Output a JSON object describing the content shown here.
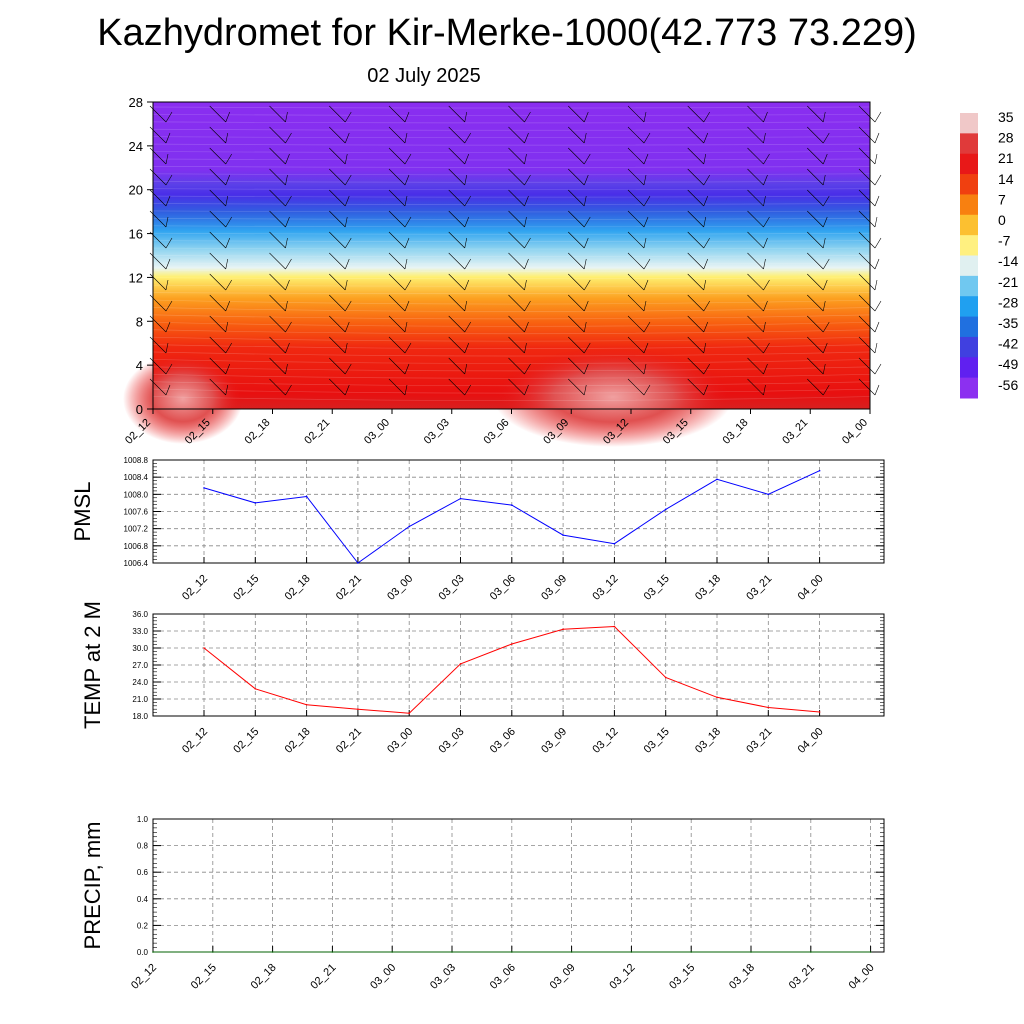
{
  "header": {
    "title": "Kazhydromet for Kir-Merke-1000(42.773 73.229)",
    "date": "02 July 2025"
  },
  "chart_data": [
    {
      "type": "heatmap",
      "name": "cross-section",
      "x_labels": [
        "02_12",
        "02_15",
        "02_18",
        "02_21",
        "03_00",
        "03_03",
        "03_06",
        "03_09",
        "03_12",
        "03_15",
        "03_18",
        "03_21",
        "04_00"
      ],
      "y_ticks": [
        0,
        4,
        8,
        12,
        16,
        20,
        24,
        28
      ],
      "ylim": [
        0,
        28
      ],
      "colorbar_labels": [
        "35",
        "28",
        "21",
        "14",
        "7",
        "0",
        "-7",
        "-14",
        "-21",
        "-28",
        "-35",
        "-42",
        "-49",
        "-56"
      ],
      "colorbar_colors": [
        "#f0c8c8",
        "#e03a3a",
        "#e81818",
        "#f04010",
        "#f88010",
        "#fcc030",
        "#fff080",
        "#e0f0f0",
        "#70c8f0",
        "#20a0f0",
        "#2070e0",
        "#4040e0",
        "#6020f0",
        "#8c30f0"
      ],
      "note_contours": "filled temperature contours with wind barbs"
    },
    {
      "type": "line",
      "name": "pmsl",
      "ylabel": "PMSL",
      "x_labels": [
        "02_12",
        "02_15",
        "02_18",
        "02_21",
        "03_00",
        "03_03",
        "03_06",
        "03_09",
        "03_12",
        "03_15",
        "03_18",
        "03_21",
        "04_00"
      ],
      "y_ticks": [
        "1006.4",
        "1006.8",
        "1007.2",
        "1007.6",
        "1008.0",
        "1008.4",
        "1008.8"
      ],
      "ylim": [
        1006.4,
        1008.8
      ],
      "values": [
        1008.15,
        1007.8,
        1007.95,
        1006.4,
        1007.25,
        1007.9,
        1007.75,
        1007.05,
        1006.85,
        1007.65,
        1008.35,
        1008.0,
        1008.55
      ],
      "color": "#0000ff"
    },
    {
      "type": "line",
      "name": "temp2m",
      "ylabel": "TEMP at 2 M",
      "x_labels": [
        "02_12",
        "02_15",
        "02_18",
        "02_21",
        "03_00",
        "03_03",
        "03_06",
        "03_09",
        "03_12",
        "03_15",
        "03_18",
        "03_21",
        "04_00"
      ],
      "y_ticks": [
        "18.0",
        "21.0",
        "24.0",
        "27.0",
        "30.0",
        "33.0",
        "36.0"
      ],
      "ylim": [
        18,
        36
      ],
      "values": [
        30.0,
        22.8,
        20.0,
        19.2,
        18.5,
        27.2,
        30.7,
        33.3,
        33.8,
        24.8,
        21.3,
        19.5,
        18.7
      ],
      "color": "#ff0000"
    },
    {
      "type": "line",
      "name": "precip",
      "ylabel": "PRECIP, mm",
      "x_labels": [
        "02_12",
        "02_15",
        "02_18",
        "02_21",
        "03_00",
        "03_03",
        "03_06",
        "03_09",
        "03_12",
        "03_15",
        "03_18",
        "03_21",
        "04_00"
      ],
      "y_ticks": [
        "0.0",
        "0.2",
        "0.4",
        "0.6",
        "0.8",
        "1.0"
      ],
      "ylim": [
        0,
        1
      ],
      "values": [
        0,
        0,
        0,
        0,
        0,
        0,
        0,
        0,
        0,
        0,
        0,
        0,
        0
      ],
      "color": "#006000"
    }
  ]
}
